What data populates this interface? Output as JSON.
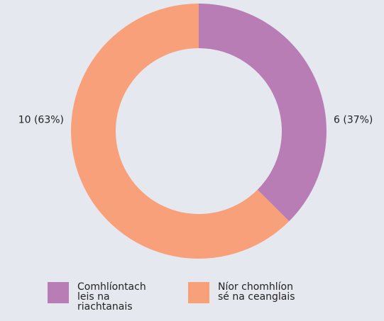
{
  "chart_data": {
    "type": "donut",
    "categories": [
      "Comhlíontach leis na riachtanais",
      "Níor chomhlíon sé na ceanglais"
    ],
    "values": [
      6,
      10
    ],
    "value_labels": [
      "6 (37%)",
      "10 (63%)"
    ],
    "colors": [
      "#b97db5",
      "#f8a07a"
    ],
    "legend": "bottom"
  }
}
